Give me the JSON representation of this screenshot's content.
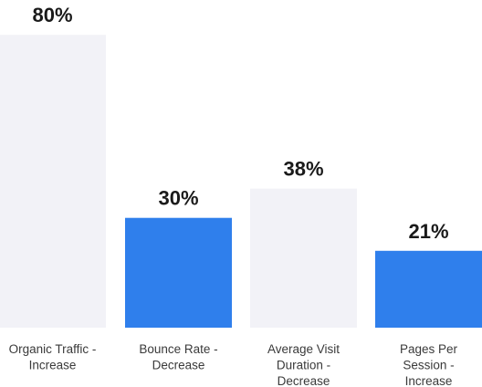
{
  "chart_data": {
    "type": "bar",
    "title": "",
    "xlabel": "",
    "ylabel": "",
    "ylim": [
      0,
      100
    ],
    "grid": false,
    "legend": "none",
    "categories": [
      [
        "Organic Traffic -",
        "Increase"
      ],
      [
        "Bounce  Rate -",
        "Decrease"
      ],
      [
        "Average Visit",
        "Duration -",
        "Decrease"
      ],
      [
        "Pages Per",
        "Session -",
        "Increase"
      ]
    ],
    "values": [
      80,
      30,
      38,
      21
    ],
    "value_labels": [
      "80%",
      "30%",
      "38%",
      "21%"
    ],
    "bar_colors": [
      "#f2f2f7",
      "#2f7fec",
      "#f2f2f7",
      "#2f7fec"
    ]
  }
}
